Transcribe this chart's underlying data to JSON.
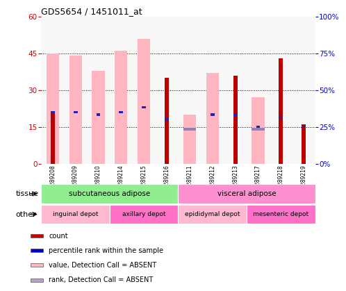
{
  "title": "GDS5654 / 1451011_at",
  "samples": [
    "GSM1289208",
    "GSM1289209",
    "GSM1289210",
    "GSM1289214",
    "GSM1289215",
    "GSM1289216",
    "GSM1289211",
    "GSM1289212",
    "GSM1289213",
    "GSM1289217",
    "GSM1289218",
    "GSM1289219"
  ],
  "red_bars": [
    21,
    0,
    0,
    0,
    0,
    35,
    0,
    0,
    36,
    0,
    43,
    16
  ],
  "pink_bars": [
    45,
    44,
    38,
    46,
    51,
    0,
    20,
    37,
    0,
    27,
    0,
    0
  ],
  "blue_markers_left": [
    21,
    21,
    20,
    21,
    23,
    18,
    0,
    20,
    20,
    15,
    19,
    15
  ],
  "blue_small_left": [
    0,
    0,
    0,
    0,
    0,
    0,
    14,
    0,
    0,
    14,
    0,
    0
  ],
  "ylim_left": [
    0,
    60
  ],
  "ylim_right": [
    0,
    100
  ],
  "yticks_left": [
    0,
    15,
    30,
    45,
    60
  ],
  "yticks_right": [
    0,
    25,
    50,
    75,
    100
  ],
  "tissue_groups": [
    {
      "label": "subcutaneous adipose",
      "start": 0,
      "end": 6,
      "color": "#90EE90"
    },
    {
      "label": "visceral adipose",
      "start": 6,
      "end": 12,
      "color": "#FF90D0"
    }
  ],
  "depot_groups": [
    {
      "label": "inguinal depot",
      "start": 0,
      "end": 3,
      "color": "#FFB8D0"
    },
    {
      "label": "axillary depot",
      "start": 3,
      "end": 6,
      "color": "#FF70C8"
    },
    {
      "label": "epididymal depot",
      "start": 6,
      "end": 9,
      "color": "#FFB8D0"
    },
    {
      "label": "mesenteric depot",
      "start": 9,
      "end": 12,
      "color": "#FF70C8"
    }
  ],
  "tissue_row_label": "tissue",
  "other_row_label": "other",
  "legend_items": [
    {
      "label": "count",
      "color": "#CC0000"
    },
    {
      "label": "percentile rank within the sample",
      "color": "#0000CC"
    },
    {
      "label": "value, Detection Call = ABSENT",
      "color": "#FFB6C1"
    },
    {
      "label": "rank, Detection Call = ABSENT",
      "color": "#B8A0C8"
    }
  ],
  "red_color": "#BB0000",
  "pink_color": "#FFB6C1",
  "blue_color": "#2222BB",
  "blue_absent_color": "#9080B8",
  "bg_color": "#FFFFFF",
  "left_label_color": "#CC0000",
  "right_label_color": "#0000CC"
}
